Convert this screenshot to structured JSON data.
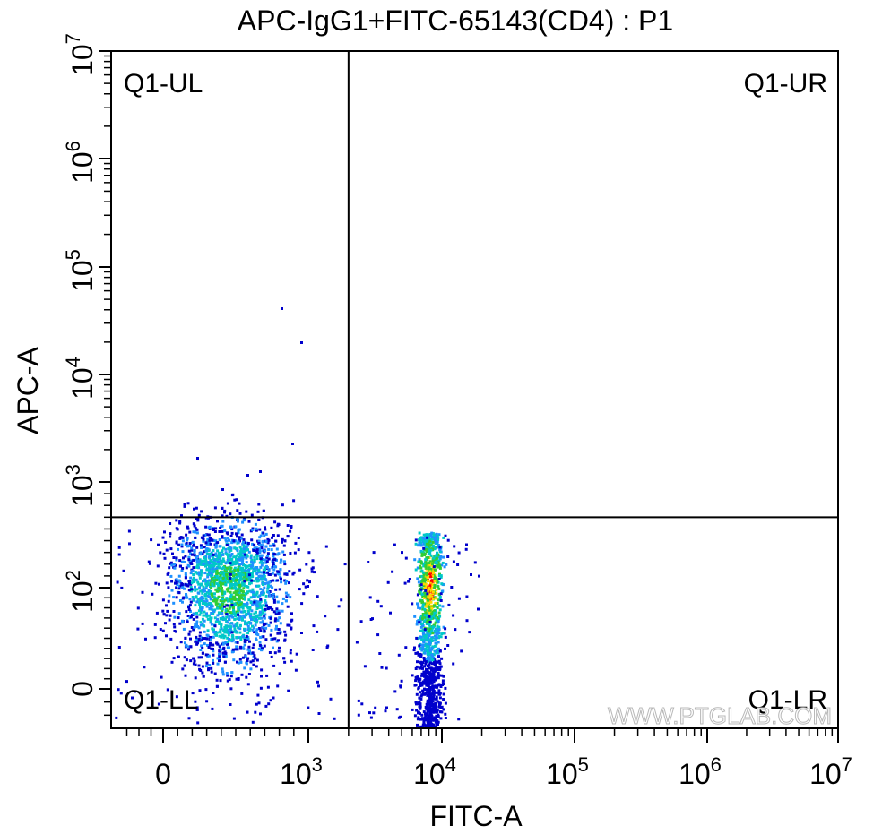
{
  "chart_data": {
    "type": "scatter",
    "title": "APC-IgG1+FITC-65143(CD4) : P1",
    "xlabel": "FITC-A",
    "ylabel": "APC-A",
    "x_scale": "biexponential",
    "y_scale": "biexponential",
    "xlim": [
      -400,
      10000000
    ],
    "ylim": [
      -30,
      10000000
    ],
    "x_ticks": [
      {
        "value": 0,
        "base": "0",
        "exp": ""
      },
      {
        "value": 1000,
        "base": "10",
        "exp": "3"
      },
      {
        "value": 10000,
        "base": "10",
        "exp": "4"
      },
      {
        "value": 100000,
        "base": "10",
        "exp": "5"
      },
      {
        "value": 1000000,
        "base": "10",
        "exp": "6"
      },
      {
        "value": 10000000,
        "base": "10",
        "exp": "7"
      }
    ],
    "y_ticks": [
      {
        "value": 0,
        "base": "0",
        "exp": ""
      },
      {
        "value": 100,
        "base": "10",
        "exp": "2"
      },
      {
        "value": 1000,
        "base": "10",
        "exp": "3"
      },
      {
        "value": 10000,
        "base": "10",
        "exp": "4"
      },
      {
        "value": 100000,
        "base": "10",
        "exp": "5"
      },
      {
        "value": 1000000,
        "base": "10",
        "exp": "6"
      },
      {
        "value": 10000000,
        "base": "10",
        "exp": "7"
      }
    ],
    "gate": {
      "x": 2000,
      "y": 700
    },
    "quadrants": {
      "ul": "Q1-UL",
      "ur": "Q1-UR",
      "ll": "Q1-LL",
      "lr": "Q1-LR"
    },
    "populations": [
      {
        "name": "",
        "x_center": 450,
        "y_center": 130,
        "count": 2200
      },
      {
        "name": "",
        "x_center": 8000,
        "y_center": 120,
        "count": 1300
      }
    ],
    "density_colors": [
      "#0000cc",
      "#1e90ff",
      "#00c8c8",
      "#32cd32",
      "#ffd700",
      "#ff0000"
    ],
    "grid": false,
    "legend": "none"
  },
  "watermark": "WWW.PTGLAB.COM"
}
